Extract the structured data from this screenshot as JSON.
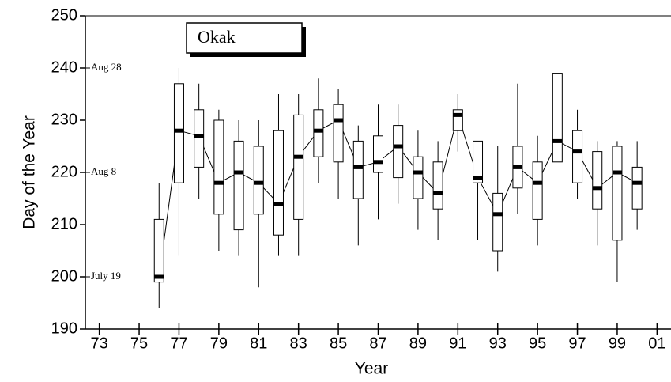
{
  "chart_data": {
    "type": "box",
    "xlabel": "Year",
    "ylabel": "Day of the Year",
    "x": [
      76,
      77,
      78,
      79,
      80,
      81,
      82,
      83,
      84,
      85,
      86,
      87,
      88,
      89,
      90,
      91,
      92,
      93,
      94,
      95,
      96,
      97,
      98,
      99,
      100
    ],
    "series": [
      {
        "name": "Okak",
        "color": "#000000",
        "min": [
          194,
          204,
          215,
          205,
          204,
          198,
          204,
          204,
          218,
          215,
          206,
          211,
          214,
          209,
          207,
          224,
          207,
          201,
          212,
          206,
          222,
          215,
          206,
          199,
          209
        ],
        "q1": [
          199,
          218,
          221,
          212,
          209,
          212,
          208,
          211,
          223,
          222,
          215,
          220,
          219,
          215,
          213,
          228,
          218,
          205,
          217,
          211,
          222,
          218,
          213,
          207,
          213
        ],
        "median": [
          200,
          228,
          227,
          218,
          220,
          218,
          214,
          223,
          228,
          230,
          221,
          222,
          225,
          220,
          216,
          231,
          219,
          212,
          221,
          218,
          226,
          224,
          217,
          220,
          218
        ],
        "q3": [
          211,
          237,
          232,
          230,
          226,
          225,
          228,
          231,
          232,
          233,
          226,
          227,
          229,
          223,
          222,
          232,
          226,
          216,
          225,
          222,
          239,
          228,
          224,
          225,
          221
        ],
        "max": [
          218,
          240,
          237,
          232,
          230,
          230,
          235,
          235,
          238,
          236,
          229,
          233,
          233,
          228,
          226,
          235,
          226,
          225,
          237,
          227,
          239,
          232,
          226,
          226,
          226
        ]
      }
    ],
    "annotations": [
      {
        "text": "Aug  28",
        "y": 240
      },
      {
        "text": "Aug  8",
        "y": 220
      },
      {
        "text": "July 19",
        "y": 200
      }
    ],
    "xlim": [
      72.3,
      101.7
    ],
    "xticks": [
      73,
      75,
      77,
      79,
      81,
      83,
      85,
      87,
      89,
      91,
      93,
      95,
      97,
      99,
      {
        "value": 101,
        "label": "01"
      }
    ],
    "ylim": [
      190,
      250
    ],
    "yticks": [
      190,
      200,
      210,
      220,
      230,
      240,
      250
    ]
  }
}
